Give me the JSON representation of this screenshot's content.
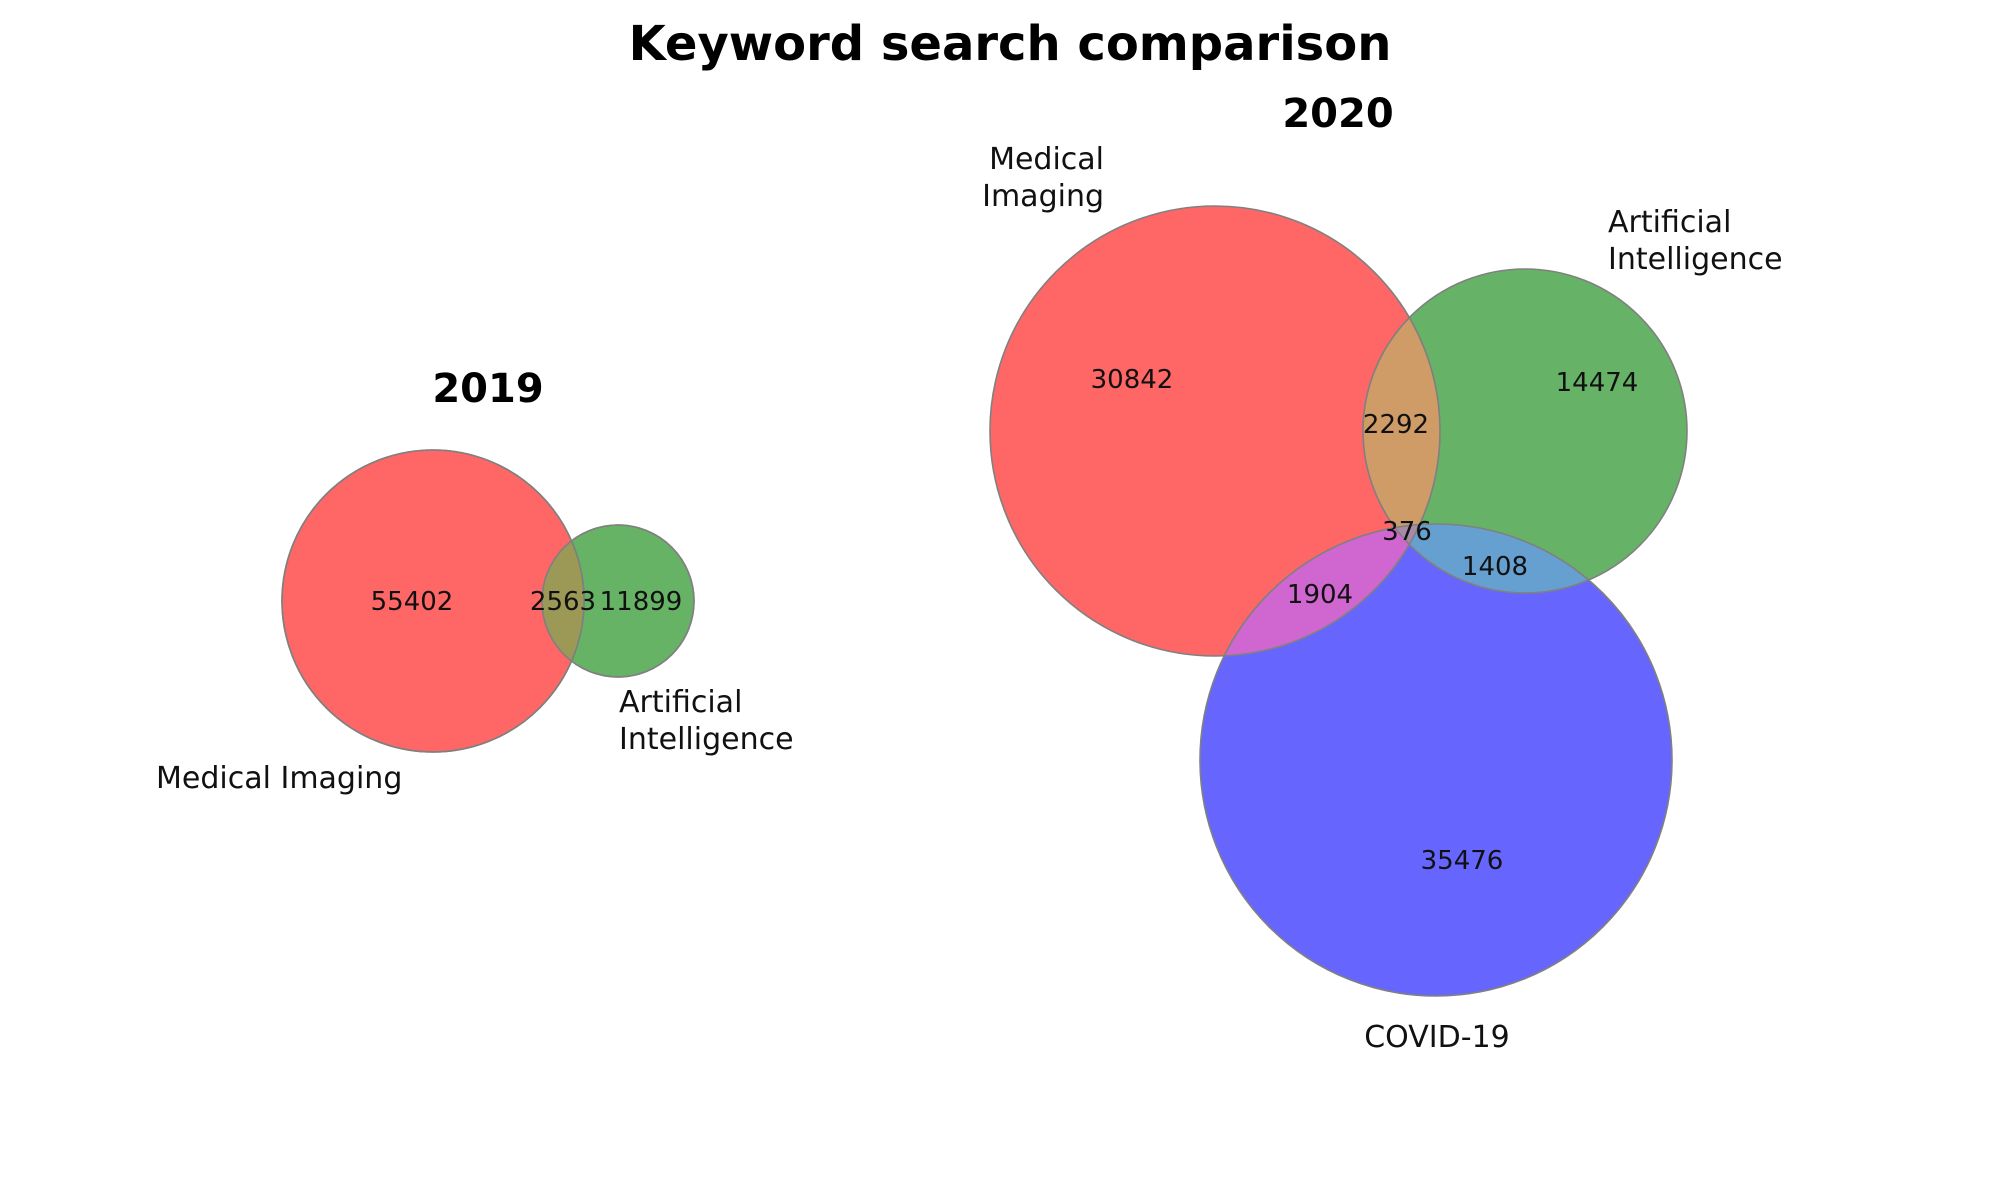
{
  "figure_title": "Keyword search comparison",
  "panels": {
    "y2019": {
      "title": "2019",
      "sets": {
        "medical_imaging": {
          "label": "Medical Imaging",
          "color": "#ff0000"
        },
        "artificial_intelligence": {
          "label_line1": "Artificial",
          "label_line2": "Intelligence",
          "color": "#008000"
        }
      },
      "regions": {
        "medical_imaging_only": "55402",
        "mi_ai_overlap": "2563",
        "artificial_intelligence_only": "11899"
      }
    },
    "y2020": {
      "title": "2020",
      "sets": {
        "medical_imaging": {
          "label_line1": "Medical",
          "label_line2": "Imaging",
          "color": "#ff0000"
        },
        "artificial_intelligence": {
          "label_line1": "Artificial",
          "label_line2": "Intelligence",
          "color": "#008000"
        },
        "covid19": {
          "label": "COVID-19",
          "color": "#0000ff"
        }
      },
      "regions": {
        "medical_imaging_only": "30842",
        "artificial_intelligence_only": "14474",
        "mi_ai_overlap": "2292",
        "all_three": "376",
        "ai_covid_overlap": "1408",
        "mi_covid_overlap": "1904",
        "covid19_only": "35476"
      }
    }
  }
}
